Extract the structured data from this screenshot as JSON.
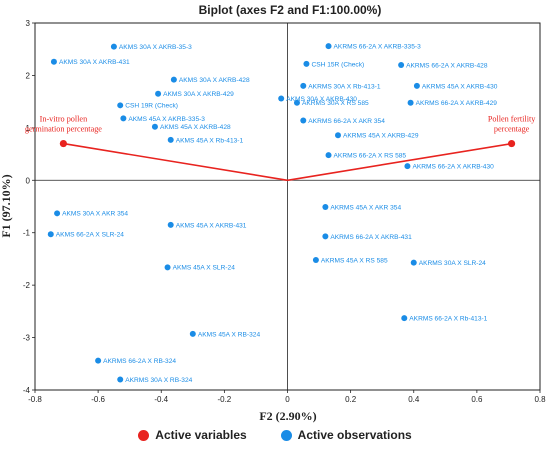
{
  "chart_data": {
    "type": "scatter",
    "title": "Biplot (axes F2 and F1:100.00%)",
    "xlabel": "F2 (2.90%)",
    "ylabel": "F1 (97.10%)",
    "xlim": [
      -0.8,
      0.8
    ],
    "ylim": [
      -4,
      3
    ],
    "xticks": [
      "-0.8",
      "-0.6",
      "-0.4",
      "-0.2",
      "0",
      "0.2",
      "0.4",
      "0.6",
      "0.8"
    ],
    "yticks": [
      "-4",
      "-3",
      "-2",
      "-1",
      "0",
      "1",
      "2",
      "3"
    ],
    "grid": false,
    "legend_position": "bottom",
    "colors": {
      "variables": "#e8231f",
      "observations": "#1a8ce6"
    },
    "variables": [
      {
        "name": "In-vitro pollen germination percentage",
        "lines": [
          "In-vitro pollen",
          "germination percentage"
        ],
        "x": -0.71,
        "y": 0.7
      },
      {
        "name": "Pollen fertility percentage",
        "lines": [
          "Pollen fertility",
          "percentage"
        ],
        "x": 0.71,
        "y": 0.7
      }
    ],
    "observations": [
      {
        "label": "AKMS 30A X AKRB-35-3",
        "x": -0.55,
        "y": 2.55
      },
      {
        "label": "AKMS 30A X AKRB-431",
        "x": -0.74,
        "y": 2.26
      },
      {
        "label": "AKMS 30A X AKRB-428",
        "x": -0.36,
        "y": 1.92
      },
      {
        "label": "AKMS 30A X AKRB-429",
        "x": -0.41,
        "y": 1.65
      },
      {
        "label": "CSH 19R (Check)",
        "x": -0.53,
        "y": 1.43
      },
      {
        "label": "AKMS 30A X AKRB-430",
        "x": -0.02,
        "y": 1.56
      },
      {
        "label": "AKMS 45A X AKRB-335-3",
        "x": -0.52,
        "y": 1.18
      },
      {
        "label": "AKMS 45A X AKRB-428",
        "x": -0.42,
        "y": 1.02
      },
      {
        "label": "AKMS 45A X Rb-413-1",
        "x": -0.37,
        "y": 0.77
      },
      {
        "label": "AKRMS 66-2A X AKRB-335-3",
        "x": 0.13,
        "y": 2.56
      },
      {
        "label": "CSH 15R (Check)",
        "x": 0.06,
        "y": 2.22
      },
      {
        "label": "AKRMS 66-2A X AKRB-428",
        "x": 0.36,
        "y": 2.2
      },
      {
        "label": "AKRMS 30A X Rb-413-1",
        "x": 0.05,
        "y": 1.8
      },
      {
        "label": "AKRMS 45A X AKRB-430",
        "x": 0.41,
        "y": 1.8
      },
      {
        "label": "AKRMS 30A X RS 585",
        "x": 0.03,
        "y": 1.48
      },
      {
        "label": "AKRMS 66-2A X AKRB-429",
        "x": 0.39,
        "y": 1.48
      },
      {
        "label": "AKRMS 66-2A X AKR 354",
        "x": 0.05,
        "y": 1.14
      },
      {
        "label": "AKRMS 45A X AKRB-429",
        "x": 0.16,
        "y": 0.86
      },
      {
        "label": "AKRMS 66-2A X RS 585",
        "x": 0.13,
        "y": 0.48
      },
      {
        "label": "AKRMS 66-2A X AKRB-430",
        "x": 0.38,
        "y": 0.27
      },
      {
        "label": "AKMS 30A X AKR 354",
        "x": -0.73,
        "y": -0.63
      },
      {
        "label": "AKMS 66-2A X SLR-24",
        "x": -0.75,
        "y": -1.03
      },
      {
        "label": "AKMS 45A X AKRB-431",
        "x": -0.37,
        "y": -0.85
      },
      {
        "label": "AKMS 45A X SLR-24",
        "x": -0.38,
        "y": -1.66
      },
      {
        "label": "AKMS 45A X RB-324",
        "x": -0.3,
        "y": -2.93
      },
      {
        "label": "AKRMS 66-2A X RB-324",
        "x": -0.6,
        "y": -3.44
      },
      {
        "label": "AKRMS 30A X RB-324",
        "x": -0.53,
        "y": -3.8
      },
      {
        "label": "AKRMS 45A X AKR 354",
        "x": 0.12,
        "y": -0.51
      },
      {
        "label": "AKRMS 66-2A X AKRB-431",
        "x": 0.12,
        "y": -1.07
      },
      {
        "label": "AKRMS 45A X RS 585",
        "x": 0.09,
        "y": -1.52
      },
      {
        "label": "AKRMS 30A X SLR-24",
        "x": 0.4,
        "y": -1.57
      },
      {
        "label": "AKRMS 66-2A X Rb-413-1",
        "x": 0.37,
        "y": -2.63
      }
    ],
    "legend": [
      {
        "name": "Active variables",
        "color": "#e8231f"
      },
      {
        "name": "Active observations",
        "color": "#1a8ce6"
      }
    ]
  }
}
